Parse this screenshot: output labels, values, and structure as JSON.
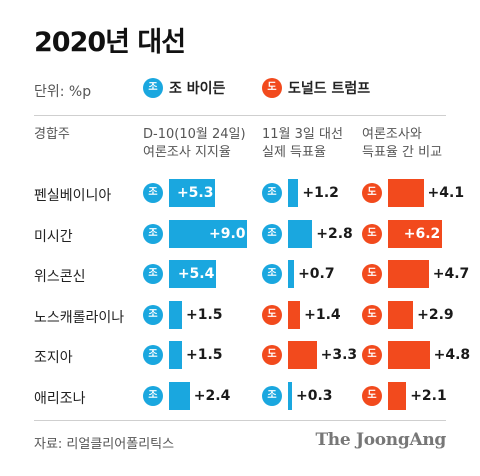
{
  "title": "2020년 대선",
  "unit": "단위: %p",
  "legend": [
    {
      "badge": "조",
      "label": "조 바이든",
      "party": "biden",
      "color": "#1aa7df"
    },
    {
      "badge": "도",
      "label": "도널드 트럼프",
      "party": "trump",
      "color": "#f24a1d"
    }
  ],
  "columns": [
    "경합주",
    "D-10(10월 24일)\n여론조사 지지율",
    "11월 3일 대선\n실제 득표율",
    "여론조사와\n득표율 간 비교"
  ],
  "source": "자료: 리얼클리어폴리틱스",
  "brand": "The JoongAng",
  "chart_data": {
    "type": "bar",
    "categories": [
      "펜실베이니아",
      "미시간",
      "위스콘신",
      "노스캐롤라이나",
      "조지아",
      "애리조나"
    ],
    "series": [
      {
        "name": "D-10(10월 24일) 여론조사 지지율",
        "values": [
          5.3,
          9.0,
          5.4,
          1.5,
          1.5,
          2.4
        ],
        "leader": [
          "조",
          "조",
          "조",
          "조",
          "조",
          "조"
        ],
        "labels": [
          "+5.3",
          "+9.0",
          "+5.4",
          "+1.5",
          "+1.5",
          "+2.4"
        ]
      },
      {
        "name": "11월 3일 대선 실제 득표율",
        "values": [
          1.2,
          2.8,
          0.7,
          1.4,
          3.3,
          0.3
        ],
        "leader": [
          "조",
          "조",
          "조",
          "도",
          "도",
          "조"
        ],
        "labels": [
          "+1.2",
          "+2.8",
          "+0.7",
          "+1.4",
          "+3.3",
          "+0.3"
        ]
      },
      {
        "name": "여론조사와 득표율 간 비교",
        "values": [
          4.1,
          6.2,
          4.7,
          2.9,
          4.8,
          2.1
        ],
        "leader": [
          "도",
          "도",
          "도",
          "도",
          "도",
          "도"
        ],
        "labels": [
          "+4.1",
          "+6.2",
          "+4.7",
          "+2.9",
          "+4.8",
          "+2.1"
        ]
      }
    ],
    "colors": {
      "조": "#1aa7df",
      "도": "#f24a1d"
    }
  }
}
